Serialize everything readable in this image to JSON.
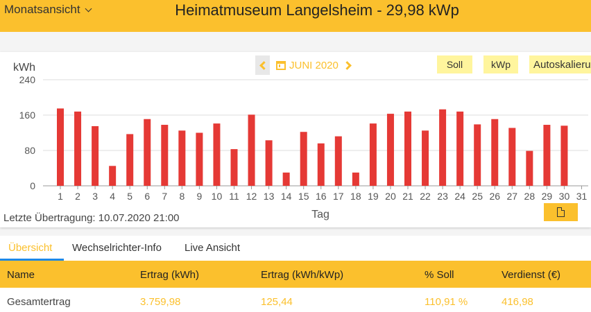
{
  "header": {
    "view_select_label": "Monatsansicht",
    "title": "Heimatmuseum Langelsheim - 29,98 kWp"
  },
  "month_nav": {
    "month_label": "JUNI 2020"
  },
  "toolbar": {
    "soll_label": "Soll",
    "kwp_label": "kWp",
    "autoscale_label": "Autoskalierung"
  },
  "status": {
    "last_transfer": "Letzte Übertragung: 10.07.2020 21:00"
  },
  "tabs": [
    {
      "label": "Übersicht"
    },
    {
      "label": "Wechselrichter-Info"
    },
    {
      "label": "Live Ansicht"
    }
  ],
  "summary_table": {
    "columns": [
      "Name",
      "Ertrag (kWh)",
      "Ertrag (kWh/kWp)",
      "% Soll",
      "Verdienst (€)"
    ],
    "rows": [
      {
        "name": "Gesamtertrag",
        "ertrag": "3.759,98",
        "ertrag_kwp": "125,44",
        "soll_pct": "110,91 %",
        "verdienst": "416,98"
      }
    ]
  },
  "colors": {
    "accent": "#fbc02d",
    "bar": "#e53935",
    "button_light": "#fff59d",
    "active_tab_underline": "#1e88e5"
  },
  "chart_data": {
    "type": "bar",
    "ylabel": "kWh",
    "xlabel": "Tag",
    "ylim": [
      0,
      240
    ],
    "yticks": [
      0,
      80,
      160,
      240
    ],
    "categories": [
      "1",
      "2",
      "3",
      "4",
      "5",
      "6",
      "7",
      "8",
      "9",
      "10",
      "11",
      "12",
      "13",
      "14",
      "15",
      "16",
      "17",
      "18",
      "19",
      "20",
      "21",
      "22",
      "23",
      "24",
      "25",
      "26",
      "27",
      "28",
      "29",
      "30",
      "31"
    ],
    "values": [
      175,
      168,
      135,
      45,
      117,
      151,
      138,
      125,
      120,
      141,
      83,
      161,
      103,
      30,
      122,
      96,
      112,
      30,
      141,
      163,
      168,
      125,
      173,
      168,
      139,
      151,
      131,
      79,
      138,
      136,
      null
    ],
    "grid": true
  }
}
